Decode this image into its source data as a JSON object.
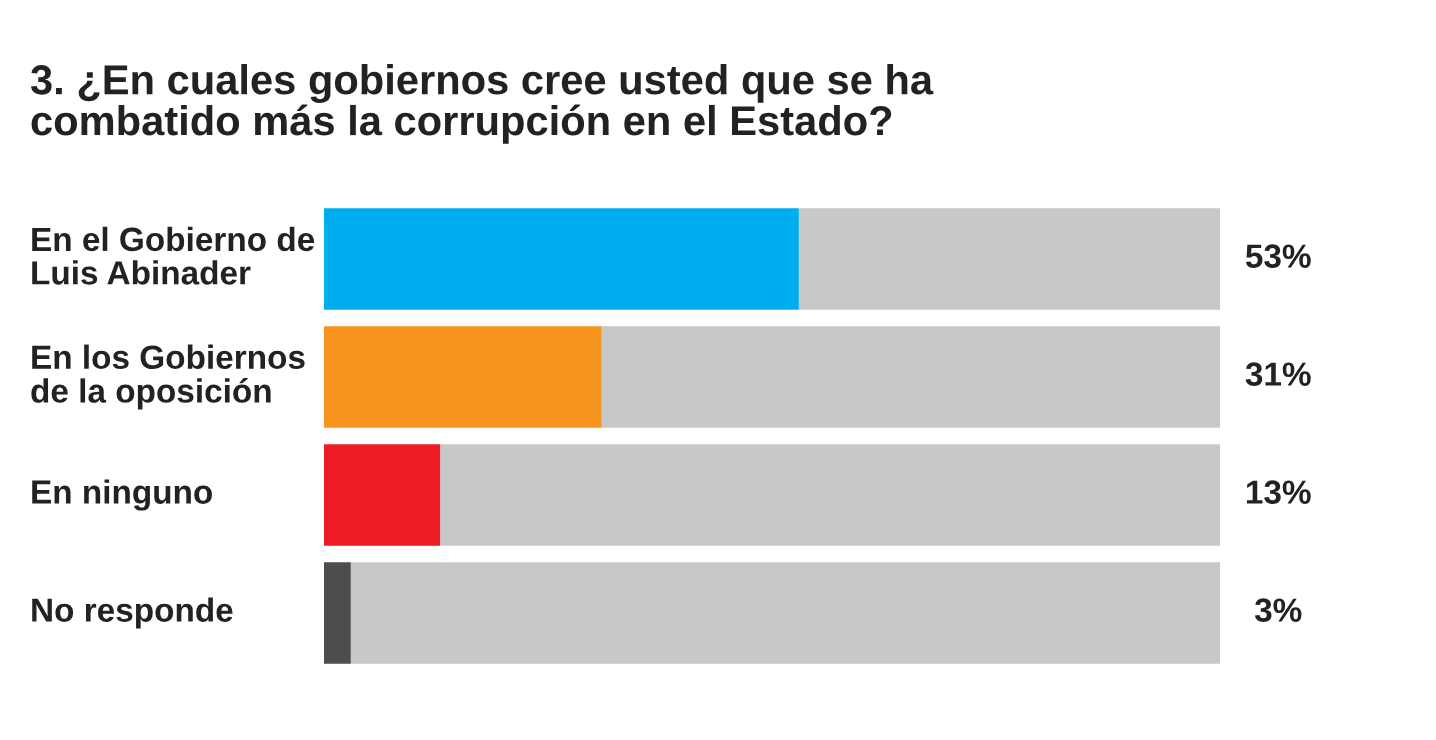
{
  "chart_data": {
    "type": "bar",
    "orientation": "horizontal",
    "stacked": true,
    "title": "3. ¿En cuales gobiernos cree usted que se ha\ncombatido más la corrupción en el Estado?",
    "categories": [
      "En el Gobierno de\nLuis Abinader",
      "En los Gobiernos\nde la oposición",
      "En ninguno",
      "No responde"
    ],
    "series": [
      {
        "colors": [
          "#00aeef",
          "#f7941d",
          "#ed1c24",
          "#4d4d4d"
        ],
        "values": [
          53,
          31,
          13,
          3
        ],
        "value_labels": [
          "53%",
          "31%",
          "13%",
          "3%"
        ]
      },
      {
        "color": "#c8c8c8",
        "values": [
          47,
          69,
          87,
          97
        ]
      }
    ],
    "xlim": [
      0,
      100
    ],
    "tick_labels": false,
    "grid": false,
    "legend": false
  }
}
